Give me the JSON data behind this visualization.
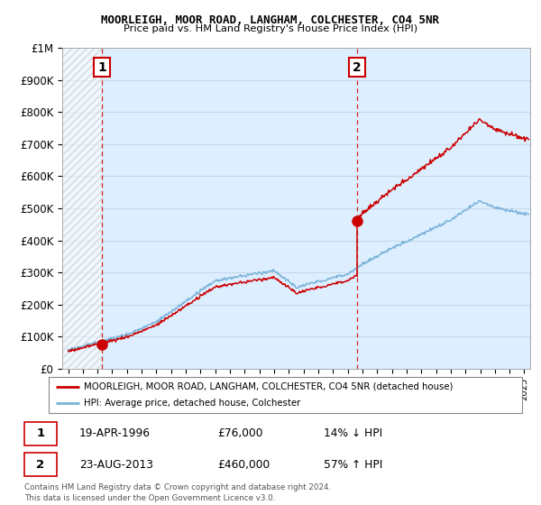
{
  "title1": "MOORLEIGH, MOOR ROAD, LANGHAM, COLCHESTER, CO4 5NR",
  "title2": "Price paid vs. HM Land Registry's House Price Index (HPI)",
  "ylabel_vals": [
    "£0",
    "£100K",
    "£200K",
    "£300K",
    "£400K",
    "£500K",
    "£600K",
    "£700K",
    "£800K",
    "£900K",
    "£1M"
  ],
  "yticks": [
    0,
    100000,
    200000,
    300000,
    400000,
    500000,
    600000,
    700000,
    800000,
    900000,
    1000000
  ],
  "xlim_start": 1993.6,
  "xlim_end": 2025.4,
  "ylim_min": 0,
  "ylim_max": 1000000,
  "sale1_x": 1996.3,
  "sale1_y": 76000,
  "sale2_x": 2013.65,
  "sale2_y": 460000,
  "legend_line1": "MOORLEIGH, MOOR ROAD, LANGHAM, COLCHESTER, CO4 5NR (detached house)",
  "legend_line2": "HPI: Average price, detached house, Colchester",
  "table_row1": [
    "1",
    "19-APR-1996",
    "£76,000",
    "14% ↓ HPI"
  ],
  "table_row2": [
    "2",
    "23-AUG-2013",
    "£460,000",
    "57% ↑ HPI"
  ],
  "footnote": "Contains HM Land Registry data © Crown copyright and database right 2024.\nThis data is licensed under the Open Government Licence v3.0.",
  "hpi_color": "#7ab3d8",
  "price_color": "#cc0000",
  "vline_color": "#cc0000",
  "plot_bg_color": "#ddeeff",
  "grid_color": "#c8d8e8"
}
